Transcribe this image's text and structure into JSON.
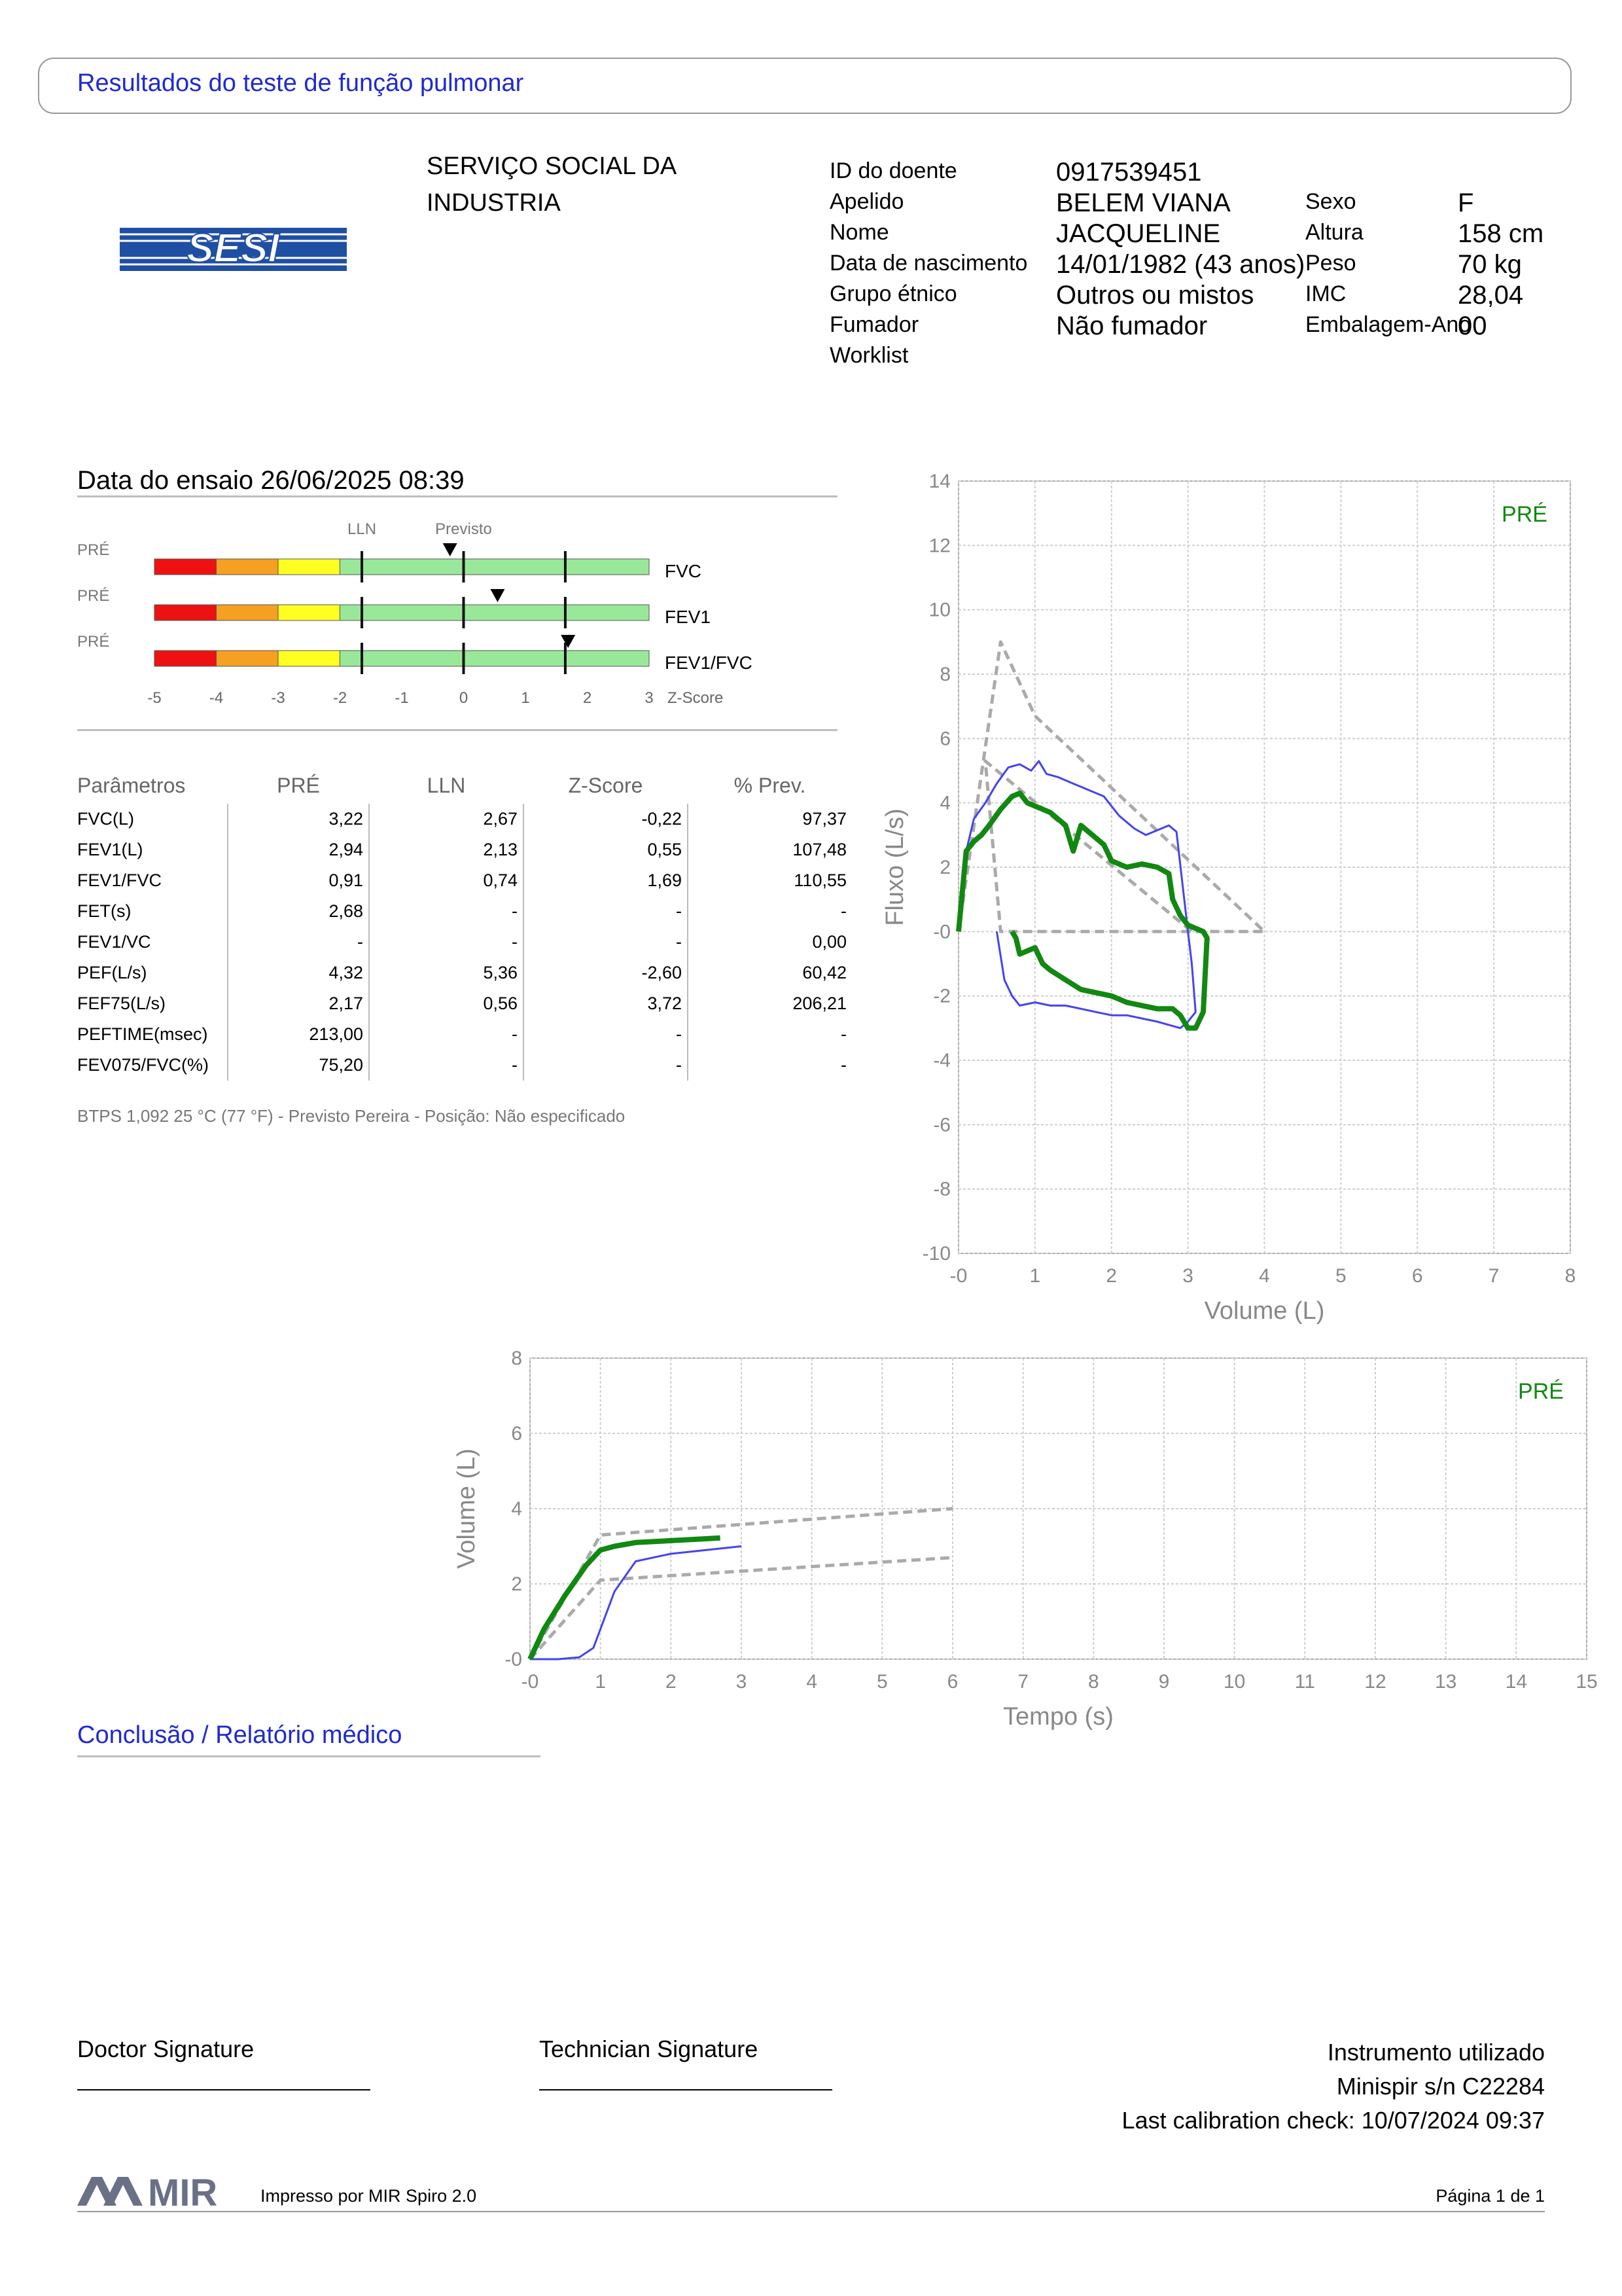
{
  "report_title": "Resultados do teste de função pulmonar",
  "logo_text": "SESI",
  "institution": [
    "SERVIÇO SOCIAL DA",
    "INDUSTRIA"
  ],
  "patient": {
    "labels": [
      "ID do doente",
      "Apelido",
      "Nome",
      "Data de nascimento",
      "Grupo étnico",
      "Fumador",
      "Worklist"
    ],
    "values": [
      "0917539451",
      "BELEM VIANA",
      "JACQUELINE",
      "14/01/1982 (43 anos)",
      "Outros ou mistos",
      "Não fumador",
      ""
    ]
  },
  "patient_extra": {
    "labels": [
      "Sexo",
      "Altura",
      "Peso",
      "IMC",
      "Embalagem-Ano"
    ],
    "values": [
      "F",
      "158 cm",
      "70 kg",
      "28,04",
      "00"
    ]
  },
  "test_date": "Data do ensaio 26/06/2025 08:39",
  "zscore_panel": {
    "lln_label": "LLN",
    "predicted_label": "Previsto",
    "row_tag": "PRÉ",
    "rows": [
      {
        "name": "FVC",
        "z": -0.22
      },
      {
        "name": "FEV1",
        "z": 0.55
      },
      {
        "name": "FEV1/FVC",
        "z": 1.69
      }
    ],
    "ticks": [
      "-5",
      "-4",
      "-3",
      "-2",
      "-1",
      "0",
      "1",
      "2",
      "3"
    ],
    "axis_label": "Z-Score",
    "colors": {
      "red": "#ee1111",
      "orange": "#f5a020",
      "yellow": "#ffff22",
      "green": "#99e899"
    }
  },
  "params_table": {
    "headers": [
      "Parâmetros",
      "PRÉ",
      "LLN",
      "Z-Score",
      "% Prev."
    ],
    "rows": [
      [
        "FVC(L)",
        "3,22",
        "2,67",
        "-0,22",
        "97,37"
      ],
      [
        "FEV1(L)",
        "2,94",
        "2,13",
        "0,55",
        "107,48"
      ],
      [
        "FEV1/FVC",
        "0,91",
        "0,74",
        "1,69",
        "110,55"
      ],
      [
        "FET(s)",
        "2,68",
        "-",
        "-",
        "-"
      ],
      [
        "FEV1/VC",
        "-",
        "-",
        "-",
        "0,00"
      ],
      [
        "PEF(L/s)",
        "4,32",
        "5,36",
        "-2,60",
        "60,42"
      ],
      [
        "FEF75(L/s)",
        "2,17",
        "0,56",
        "3,72",
        "206,21"
      ],
      [
        "PEFTIME(msec)",
        "213,00",
        "-",
        "-",
        "-"
      ],
      [
        "FEV075/FVC(%)",
        "75,20",
        "-",
        "-",
        "-"
      ]
    ]
  },
  "btps_note": "BTPS 1,092 25 °C (77 °F) - Previsto Pereira - Posição: Não especificado",
  "chart_data": [
    {
      "type": "line",
      "title": "",
      "xlabel": "Volume (L)",
      "ylabel": "Fluxo (L/s)",
      "xlim": [
        0,
        8
      ],
      "ylim": [
        -10,
        14
      ],
      "xticks": [
        "-0",
        "1",
        "2",
        "3",
        "4",
        "5",
        "6",
        "7",
        "8"
      ],
      "yticks": [
        "-10",
        "-8",
        "-6",
        "-4",
        "-2",
        "-0",
        "2",
        "4",
        "6",
        "8",
        "10",
        "12",
        "14"
      ],
      "grid": true,
      "legend": "PRÉ",
      "legend_placement": "top-right",
      "series": [
        {
          "style": "predicted",
          "color": "#aaaaaa",
          "x": [
            0,
            0.55,
            1.0,
            4.0,
            0.55,
            0.35,
            3.05
          ],
          "y": [
            0,
            9.0,
            6.7,
            0,
            0,
            5.3,
            0
          ]
        },
        {
          "style": "secondary",
          "color": "#4444ee",
          "x": [
            0,
            0.1,
            0.2,
            0.35,
            0.5,
            0.65,
            0.8,
            0.95,
            1.05,
            1.15,
            1.3,
            1.5,
            1.7,
            1.9,
            2.1,
            2.3,
            2.45,
            2.55,
            2.65,
            2.75,
            2.85,
            3.0,
            3.05,
            3.1,
            3.0,
            2.9,
            2.75,
            2.6,
            2.4,
            2.2,
            2.0,
            1.8,
            1.6,
            1.4,
            1.2,
            1.0,
            0.8,
            0.7,
            0.6,
            0.5
          ],
          "y": [
            0,
            2.5,
            3.5,
            4.0,
            4.6,
            5.1,
            5.2,
            5.0,
            5.3,
            4.9,
            4.8,
            4.6,
            4.4,
            4.2,
            3.6,
            3.2,
            3.0,
            3.1,
            3.2,
            3.3,
            3.1,
            0,
            -1.0,
            -2.5,
            -2.8,
            -3.0,
            -2.9,
            -2.8,
            -2.7,
            -2.6,
            -2.6,
            -2.5,
            -2.4,
            -2.3,
            -2.3,
            -2.2,
            -2.3,
            -2.0,
            -1.5,
            0
          ]
        },
        {
          "style": "best",
          "color": "#118811",
          "x": [
            0,
            0.1,
            0.2,
            0.3,
            0.4,
            0.55,
            0.7,
            0.8,
            0.9,
            1.0,
            1.2,
            1.4,
            1.5,
            1.6,
            1.7,
            1.9,
            2.0,
            2.2,
            2.4,
            2.6,
            2.75,
            2.8,
            2.9,
            3.0,
            3.1,
            3.2,
            3.25,
            3.2,
            3.1,
            3.0,
            2.9,
            2.8,
            2.6,
            2.4,
            2.2,
            2.0,
            1.8,
            1.6,
            1.4,
            1.2,
            1.1,
            1.0,
            0.9,
            0.8,
            0.75,
            0.7
          ],
          "y": [
            0,
            2.5,
            2.8,
            3.0,
            3.3,
            3.8,
            4.2,
            4.3,
            4.0,
            3.9,
            3.7,
            3.3,
            2.5,
            3.3,
            3.1,
            2.7,
            2.2,
            2.0,
            2.1,
            2.0,
            1.8,
            1.0,
            0.5,
            0.2,
            0.1,
            0,
            -0.2,
            -2.5,
            -3.0,
            -3.0,
            -2.6,
            -2.4,
            -2.4,
            -2.3,
            -2.2,
            -2.0,
            -1.9,
            -1.8,
            -1.5,
            -1.2,
            -1.0,
            -0.5,
            -0.6,
            -0.7,
            -0.2,
            0
          ]
        }
      ]
    },
    {
      "type": "line",
      "title": "",
      "xlabel": "Tempo (s)",
      "ylabel": "Volume (L)",
      "xlim": [
        0,
        15
      ],
      "ylim": [
        0,
        8
      ],
      "xticks": [
        "-0",
        "1",
        "2",
        "3",
        "4",
        "5",
        "6",
        "7",
        "8",
        "9",
        "10",
        "11",
        "12",
        "13",
        "14",
        "15"
      ],
      "yticks": [
        "-0",
        "2",
        "4",
        "6",
        "8"
      ],
      "grid": true,
      "legend": "PRÉ",
      "legend_placement": "top-right",
      "series": [
        {
          "style": "predicted",
          "color": "#aaaaaa",
          "x": [
            0,
            1.0,
            6.0
          ],
          "y": [
            0,
            3.3,
            4.0
          ]
        },
        {
          "style": "predicted",
          "color": "#aaaaaa",
          "x": [
            0,
            1.0,
            6.0
          ],
          "y": [
            0,
            2.1,
            2.7
          ]
        },
        {
          "style": "secondary",
          "color": "#4444ee",
          "x": [
            0,
            0.4,
            0.7,
            0.9,
            1.0,
            1.2,
            1.5,
            2.0,
            2.5,
            3.0
          ],
          "y": [
            0,
            0,
            0.05,
            0.3,
            0.8,
            1.8,
            2.6,
            2.8,
            2.9,
            3.0
          ]
        },
        {
          "style": "best",
          "color": "#118811",
          "x": [
            0,
            0.2,
            0.5,
            0.8,
            1.0,
            1.2,
            1.5,
            2.0,
            2.5,
            2.7
          ],
          "y": [
            0,
            0.8,
            1.7,
            2.5,
            2.9,
            3.0,
            3.1,
            3.15,
            3.2,
            3.22
          ]
        }
      ]
    }
  ],
  "conclusion_title": "Conclusão / Relatório médico",
  "signatures": {
    "doctor": "Doctor Signature",
    "technician": "Technician Signature"
  },
  "instrument": [
    "Instrumento utilizado",
    "Minispir s/n C22284",
    "Last calibration check: 10/07/2024 09:37"
  ],
  "footer": {
    "brand": "MIR",
    "printed_by": "Impresso por MIR Spiro 2.0",
    "page": "Página 1 de 1"
  }
}
